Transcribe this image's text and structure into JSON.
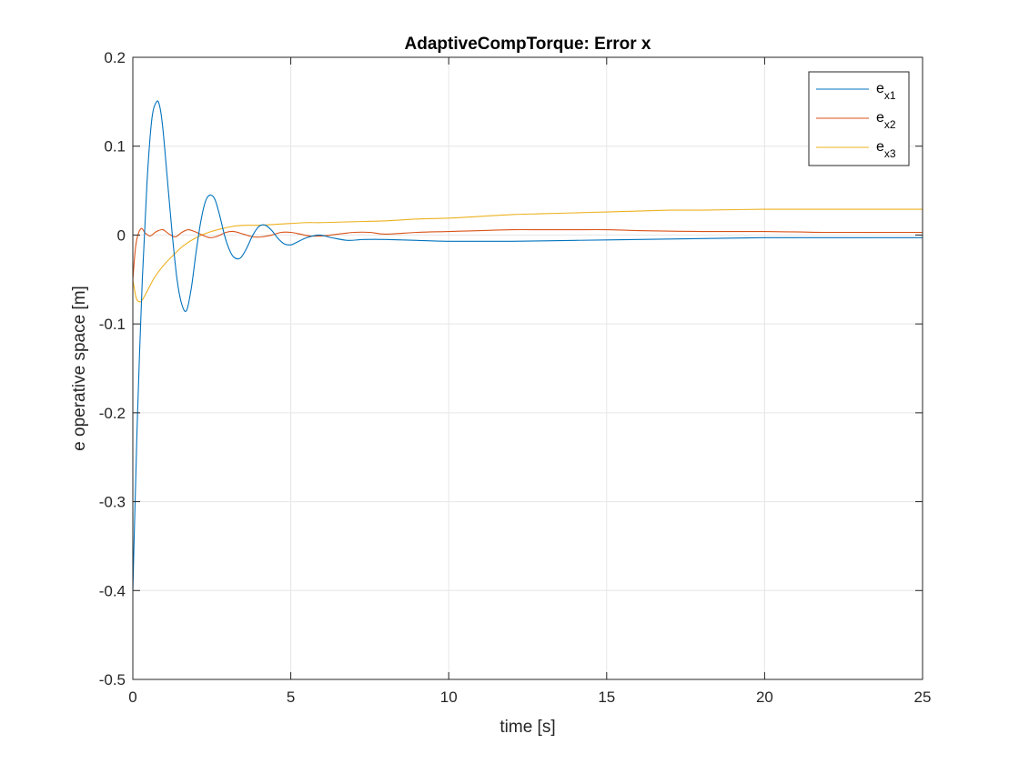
{
  "chart_data": {
    "type": "line",
    "title": "AdaptiveCompTorque: Error x",
    "xlabel": "time [s]",
    "ylabel": "e operative space [m]",
    "xlim": [
      0,
      25
    ],
    "ylim": [
      -0.5,
      0.2
    ],
    "xticks": [
      0,
      5,
      10,
      15,
      20,
      25
    ],
    "xtick_labels": [
      "0",
      "5",
      "10",
      "15",
      "20",
      "25"
    ],
    "yticks": [
      -0.5,
      -0.4,
      -0.3,
      -0.2,
      -0.1,
      0,
      0.1,
      0.2
    ],
    "ytick_labels": [
      "-0.5",
      "-0.4",
      "-0.3",
      "-0.2",
      "-0.1",
      "0",
      "0.1",
      "0.2"
    ],
    "grid": true,
    "legend_position": "top-right",
    "series": [
      {
        "name": "e_x1",
        "legend_main": "e",
        "legend_sub": "x1",
        "color": "#0072BD",
        "x": [
          0,
          0.05,
          0.15,
          0.3,
          0.45,
          0.6,
          0.75,
          0.85,
          0.95,
          1.1,
          1.25,
          1.4,
          1.55,
          1.7,
          1.85,
          2.0,
          2.15,
          2.3,
          2.45,
          2.6,
          2.75,
          2.9,
          3.05,
          3.2,
          3.4,
          3.6,
          3.8,
          4.0,
          4.2,
          4.4,
          4.6,
          4.8,
          5.0,
          5.2,
          5.5,
          5.9,
          6.3,
          6.8,
          7.3,
          8,
          9,
          10,
          11,
          12,
          14,
          16,
          18,
          20,
          22,
          25
        ],
        "y": [
          -0.4,
          -0.33,
          -0.2,
          -0.05,
          0.06,
          0.13,
          0.15,
          0.145,
          0.12,
          0.06,
          0.0,
          -0.05,
          -0.078,
          -0.085,
          -0.06,
          -0.02,
          0.015,
          0.038,
          0.045,
          0.04,
          0.022,
          0.0,
          -0.016,
          -0.025,
          -0.026,
          -0.015,
          0.0,
          0.01,
          0.011,
          0.005,
          -0.004,
          -0.01,
          -0.011,
          -0.008,
          -0.003,
          0.0,
          -0.003,
          -0.006,
          -0.005,
          -0.005,
          -0.006,
          -0.007,
          -0.007,
          -0.007,
          -0.006,
          -0.005,
          -0.004,
          -0.003,
          -0.003,
          -0.003
        ]
      },
      {
        "name": "e_x2",
        "legend_main": "e",
        "legend_sub": "x2",
        "color": "#D95319",
        "x": [
          0,
          0.1,
          0.25,
          0.4,
          0.55,
          0.75,
          0.95,
          1.15,
          1.35,
          1.55,
          1.75,
          1.95,
          2.2,
          2.45,
          2.7,
          2.95,
          3.2,
          3.5,
          3.8,
          4.1,
          4.4,
          4.7,
          5.0,
          5.3,
          5.6,
          6.0,
          6.5,
          7.0,
          7.5,
          8,
          9,
          10,
          11,
          12,
          13,
          14,
          15,
          16,
          18,
          20,
          22,
          25
        ],
        "y": [
          -0.05,
          -0.01,
          0.007,
          0.002,
          -0.001,
          0.004,
          0.006,
          0.001,
          -0.002,
          0.003,
          0.006,
          0.004,
          0.0,
          -0.003,
          -0.001,
          0.003,
          0.004,
          0.001,
          -0.002,
          -0.002,
          0.0,
          0.003,
          0.003,
          0.001,
          -0.001,
          -0.001,
          0.001,
          0.003,
          0.003,
          0.001,
          0.003,
          0.004,
          0.005,
          0.006,
          0.006,
          0.006,
          0.006,
          0.005,
          0.004,
          0.004,
          0.003,
          0.003
        ]
      },
      {
        "name": "e_x3",
        "legend_main": "e",
        "legend_sub": "x3",
        "color": "#EDB120",
        "x": [
          0,
          0.1,
          0.2,
          0.3,
          0.5,
          0.7,
          1.0,
          1.3,
          1.6,
          2.0,
          2.4,
          2.8,
          3.2,
          3.6,
          4.0,
          4.5,
          5.0,
          5.5,
          6.0,
          7.0,
          8.0,
          9.0,
          10,
          11,
          12,
          13,
          14,
          15,
          16,
          17,
          18,
          20,
          22,
          25
        ],
        "y": [
          -0.05,
          -0.07,
          -0.075,
          -0.073,
          -0.06,
          -0.047,
          -0.033,
          -0.022,
          -0.012,
          -0.003,
          0.003,
          0.007,
          0.01,
          0.011,
          0.011,
          0.012,
          0.013,
          0.014,
          0.014,
          0.015,
          0.016,
          0.018,
          0.019,
          0.021,
          0.023,
          0.024,
          0.025,
          0.026,
          0.027,
          0.028,
          0.028,
          0.029,
          0.029,
          0.029
        ]
      }
    ]
  }
}
